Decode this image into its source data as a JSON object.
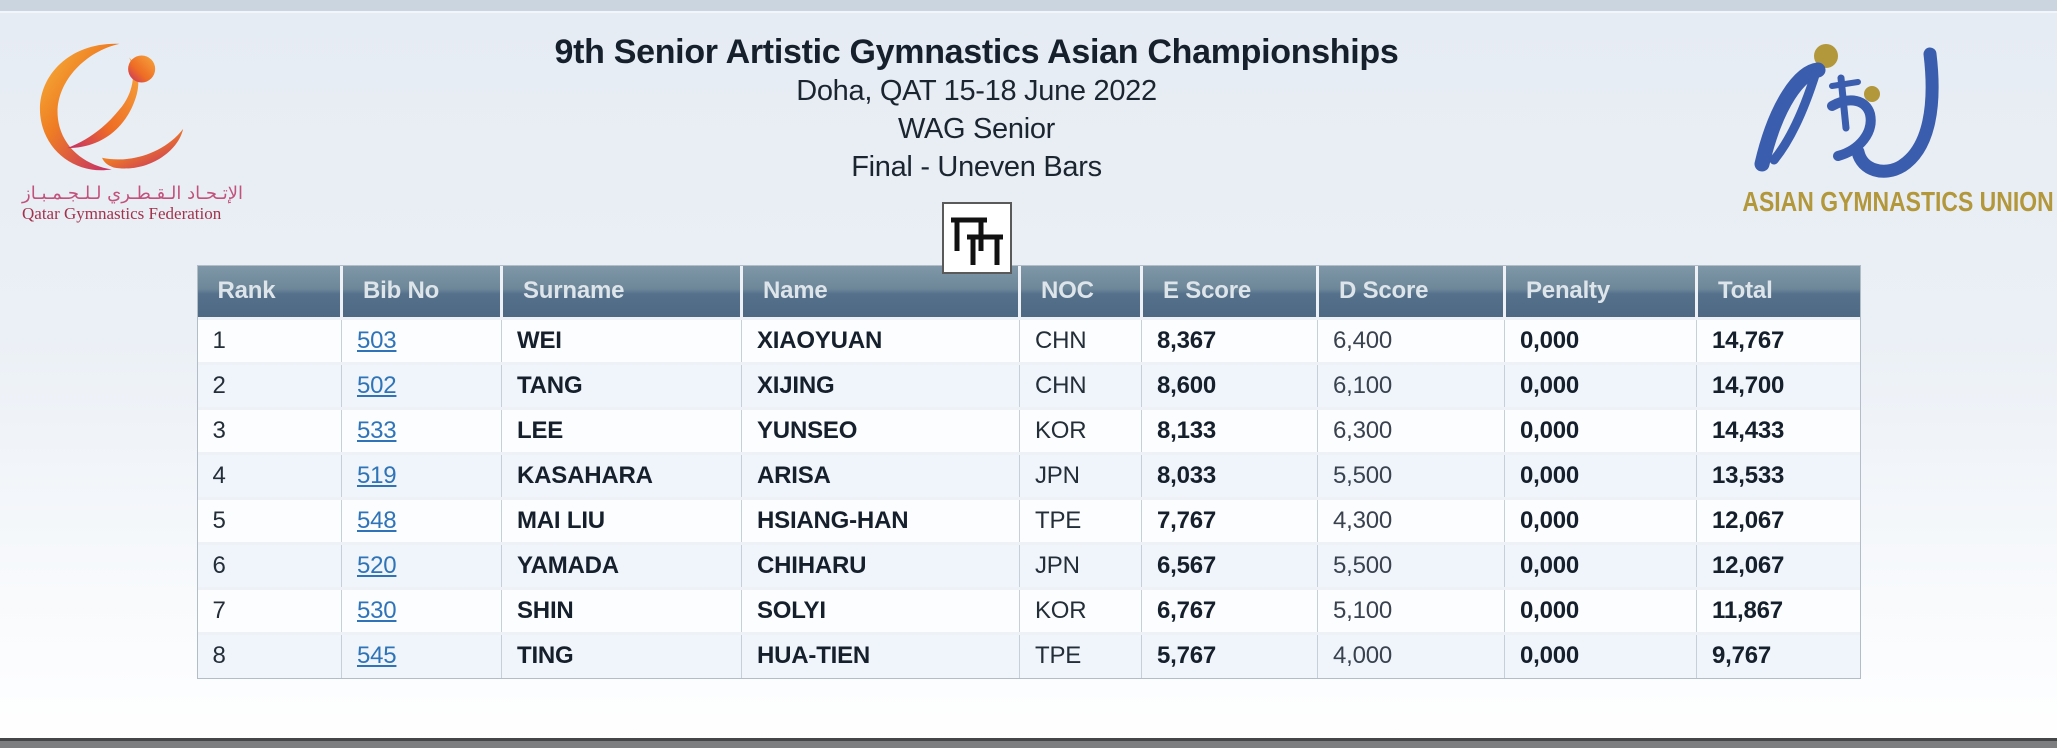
{
  "header": {
    "title_lines": [
      "9th Senior Artistic Gymnastics Asian Championships",
      "Doha, QAT 15-18 June 2022",
      "WAG Senior",
      "Final - Uneven Bars"
    ]
  },
  "logos": {
    "qatar": {
      "arabic_name": "الإتـحـاد الـقـطـري لـلـجـمـبـاز",
      "english_name": "Qatar Gymnastics Federation"
    },
    "agu": {
      "name": "ASIAN GYMNASTICS UNION"
    }
  },
  "apparatus_icon": "uneven-bars",
  "colors": {
    "header_bar_top": "#7f97a7",
    "header_bar_bottom": "#4d6983",
    "link_blue": "#2f74b8",
    "agu_gold": "#b3973b",
    "agu_blue": "#3a5dae",
    "qatar_orange": "#ef7d23",
    "qatar_magenta": "#c42e68",
    "top_strip": "#cbd5e0",
    "bottom_bar": "#7d7e80"
  },
  "table": {
    "headers": [
      "Rank",
      "Bib No",
      "Surname",
      "Name",
      "NOC",
      "E Score",
      "D Score",
      "Penalty",
      "Total"
    ],
    "col_keys": [
      "rank",
      "bib",
      "surname",
      "name",
      "noc",
      "escore",
      "dscore",
      "penalty",
      "total"
    ],
    "rows": [
      [
        "1",
        "503",
        "WEI",
        "XIAOYUAN",
        "CHN",
        "8,367",
        "6,400",
        "0,000",
        "14,767"
      ],
      [
        "2",
        "502",
        "TANG",
        "XIJING",
        "CHN",
        "8,600",
        "6,100",
        "0,000",
        "14,700"
      ],
      [
        "3",
        "533",
        "LEE",
        "YUNSEO",
        "KOR",
        "8,133",
        "6,300",
        "0,000",
        "14,433"
      ],
      [
        "4",
        "519",
        "KASAHARA",
        "ARISA",
        "JPN",
        "8,033",
        "5,500",
        "0,000",
        "13,533"
      ],
      [
        "5",
        "548",
        "MAI LIU",
        "HSIANG-HAN",
        "TPE",
        "7,767",
        "4,300",
        "0,000",
        "12,067"
      ],
      [
        "6",
        "520",
        "YAMADA",
        "CHIHARU",
        "JPN",
        "6,567",
        "5,500",
        "0,000",
        "12,067"
      ],
      [
        "7",
        "530",
        "SHIN",
        "SOLYI",
        "KOR",
        "6,767",
        "5,100",
        "0,000",
        "11,867"
      ],
      [
        "8",
        "545",
        "TING",
        "HUA-TIEN",
        "TPE",
        "5,767",
        "4,000",
        "0,000",
        "9,767"
      ]
    ]
  }
}
